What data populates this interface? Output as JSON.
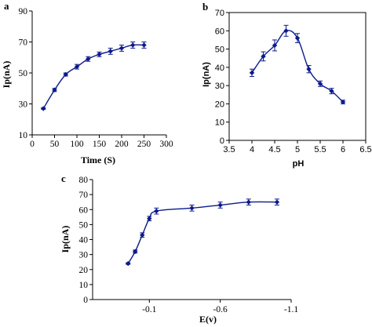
{
  "chart_data": [
    {
      "type": "line",
      "panel_label": "a",
      "xlabel": "Time (S)",
      "ylabel": "Ip(nA)",
      "xlim": [
        0,
        300
      ],
      "ylim": [
        10,
        90
      ],
      "xticks": [
        0,
        50,
        100,
        150,
        200,
        250,
        300
      ],
      "yticks": [
        10,
        30,
        50,
        70,
        90
      ],
      "grid": false,
      "color": "#0c1a8a",
      "x": [
        25,
        50,
        75,
        100,
        125,
        150,
        175,
        200,
        225,
        250
      ],
      "y": [
        27,
        39,
        49,
        54,
        59,
        62,
        64,
        66,
        68,
        68
      ],
      "err": [
        0.5,
        1,
        1,
        1.5,
        1.5,
        1.5,
        2,
        2,
        2,
        2
      ]
    },
    {
      "type": "line",
      "panel_label": "b",
      "xlabel": "pH",
      "ylabel": "Ip(nA)",
      "xlim": [
        3.5,
        6.5
      ],
      "ylim": [
        0,
        70
      ],
      "xticks": [
        3.5,
        4,
        4.5,
        5,
        5.5,
        6,
        6.5
      ],
      "yticks": [
        0,
        10,
        20,
        30,
        40,
        50,
        60,
        70
      ],
      "grid": false,
      "color": "#0c1a8a",
      "x": [
        4.0,
        4.25,
        4.5,
        4.75,
        5.0,
        5.25,
        5.5,
        5.75,
        6.0
      ],
      "y": [
        37,
        46,
        52,
        60,
        56,
        39,
        31,
        27,
        21
      ],
      "err": [
        2,
        2.5,
        3,
        3,
        2.5,
        2,
        1.5,
        1.5,
        1
      ]
    },
    {
      "type": "line",
      "panel_label": "c",
      "xlabel": "E(v)",
      "ylabel": "Ip(nA)",
      "xlim": [
        0.3,
        -1.1
      ],
      "ylim": [
        0,
        80
      ],
      "xticks": [
        -0.1,
        -0.6,
        -1.1
      ],
      "yticks": [
        0,
        10,
        20,
        30,
        40,
        50,
        60,
        70,
        80
      ],
      "grid": false,
      "color": "#0c1a8a",
      "x": [
        0.05,
        0.0,
        -0.05,
        -0.1,
        -0.15,
        -0.4,
        -0.6,
        -0.8,
        -1.0
      ],
      "y": [
        24,
        32,
        43,
        54,
        59,
        61,
        63,
        65,
        65
      ],
      "err": [
        0.5,
        1,
        1.5,
        1.5,
        2,
        2,
        2,
        2,
        2
      ]
    }
  ]
}
